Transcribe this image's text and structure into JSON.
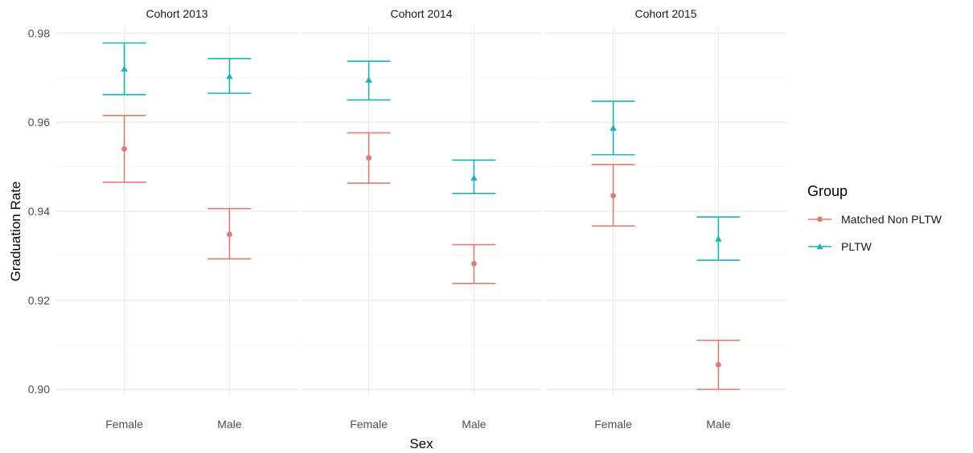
{
  "chart_data": {
    "type": "errorbar",
    "xlabel": "Sex",
    "ylabel": "Graduation Rate",
    "ylim": [
      0.8985,
      0.9815
    ],
    "yticks": [
      0.9,
      0.92,
      0.94,
      0.96,
      0.98
    ],
    "ytick_labels": [
      "0.90",
      "0.92",
      "0.94",
      "0.96",
      "0.98"
    ],
    "categories": [
      "Female",
      "Male"
    ],
    "grid": true,
    "legend": {
      "title": "Group",
      "position": "right",
      "entries": [
        {
          "label": "Matched Non PLTW",
          "color": "#E07B72",
          "shape": "circle"
        },
        {
          "label": "PLTW",
          "color": "#15B3BD",
          "shape": "triangle"
        }
      ]
    },
    "panels": [
      {
        "title": "Cohort 2013",
        "series": [
          {
            "name": "Matched Non PLTW",
            "points": [
              {
                "x": "Female",
                "y": 0.954,
                "lower": 0.9465,
                "upper": 0.9615
              },
              {
                "x": "Male",
                "y": 0.9348,
                "lower": 0.9293,
                "upper": 0.9406
              }
            ]
          },
          {
            "name": "PLTW",
            "points": [
              {
                "x": "Female",
                "y": 0.972,
                "lower": 0.9662,
                "upper": 0.9778
              },
              {
                "x": "Male",
                "y": 0.9703,
                "lower": 0.9665,
                "upper": 0.9743
              }
            ]
          }
        ]
      },
      {
        "title": "Cohort 2014",
        "series": [
          {
            "name": "Matched Non PLTW",
            "points": [
              {
                "x": "Female",
                "y": 0.952,
                "lower": 0.9463,
                "upper": 0.9576
              },
              {
                "x": "Male",
                "y": 0.9282,
                "lower": 0.9238,
                "upper": 0.9325
              }
            ]
          },
          {
            "name": "PLTW",
            "points": [
              {
                "x": "Female",
                "y": 0.9695,
                "lower": 0.965,
                "upper": 0.9737
              },
              {
                "x": "Male",
                "y": 0.9475,
                "lower": 0.944,
                "upper": 0.9515
              }
            ]
          }
        ]
      },
      {
        "title": "Cohort 2015",
        "series": [
          {
            "name": "Matched Non PLTW",
            "points": [
              {
                "x": "Female",
                "y": 0.9435,
                "lower": 0.9367,
                "upper": 0.9505
              },
              {
                "x": "Male",
                "y": 0.9055,
                "lower": 0.9,
                "upper": 0.911
              }
            ]
          },
          {
            "name": "PLTW",
            "points": [
              {
                "x": "Female",
                "y": 0.9587,
                "lower": 0.9527,
                "upper": 0.9647
              },
              {
                "x": "Male",
                "y": 0.9338,
                "lower": 0.929,
                "upper": 0.9387
              }
            ]
          }
        ]
      }
    ]
  }
}
